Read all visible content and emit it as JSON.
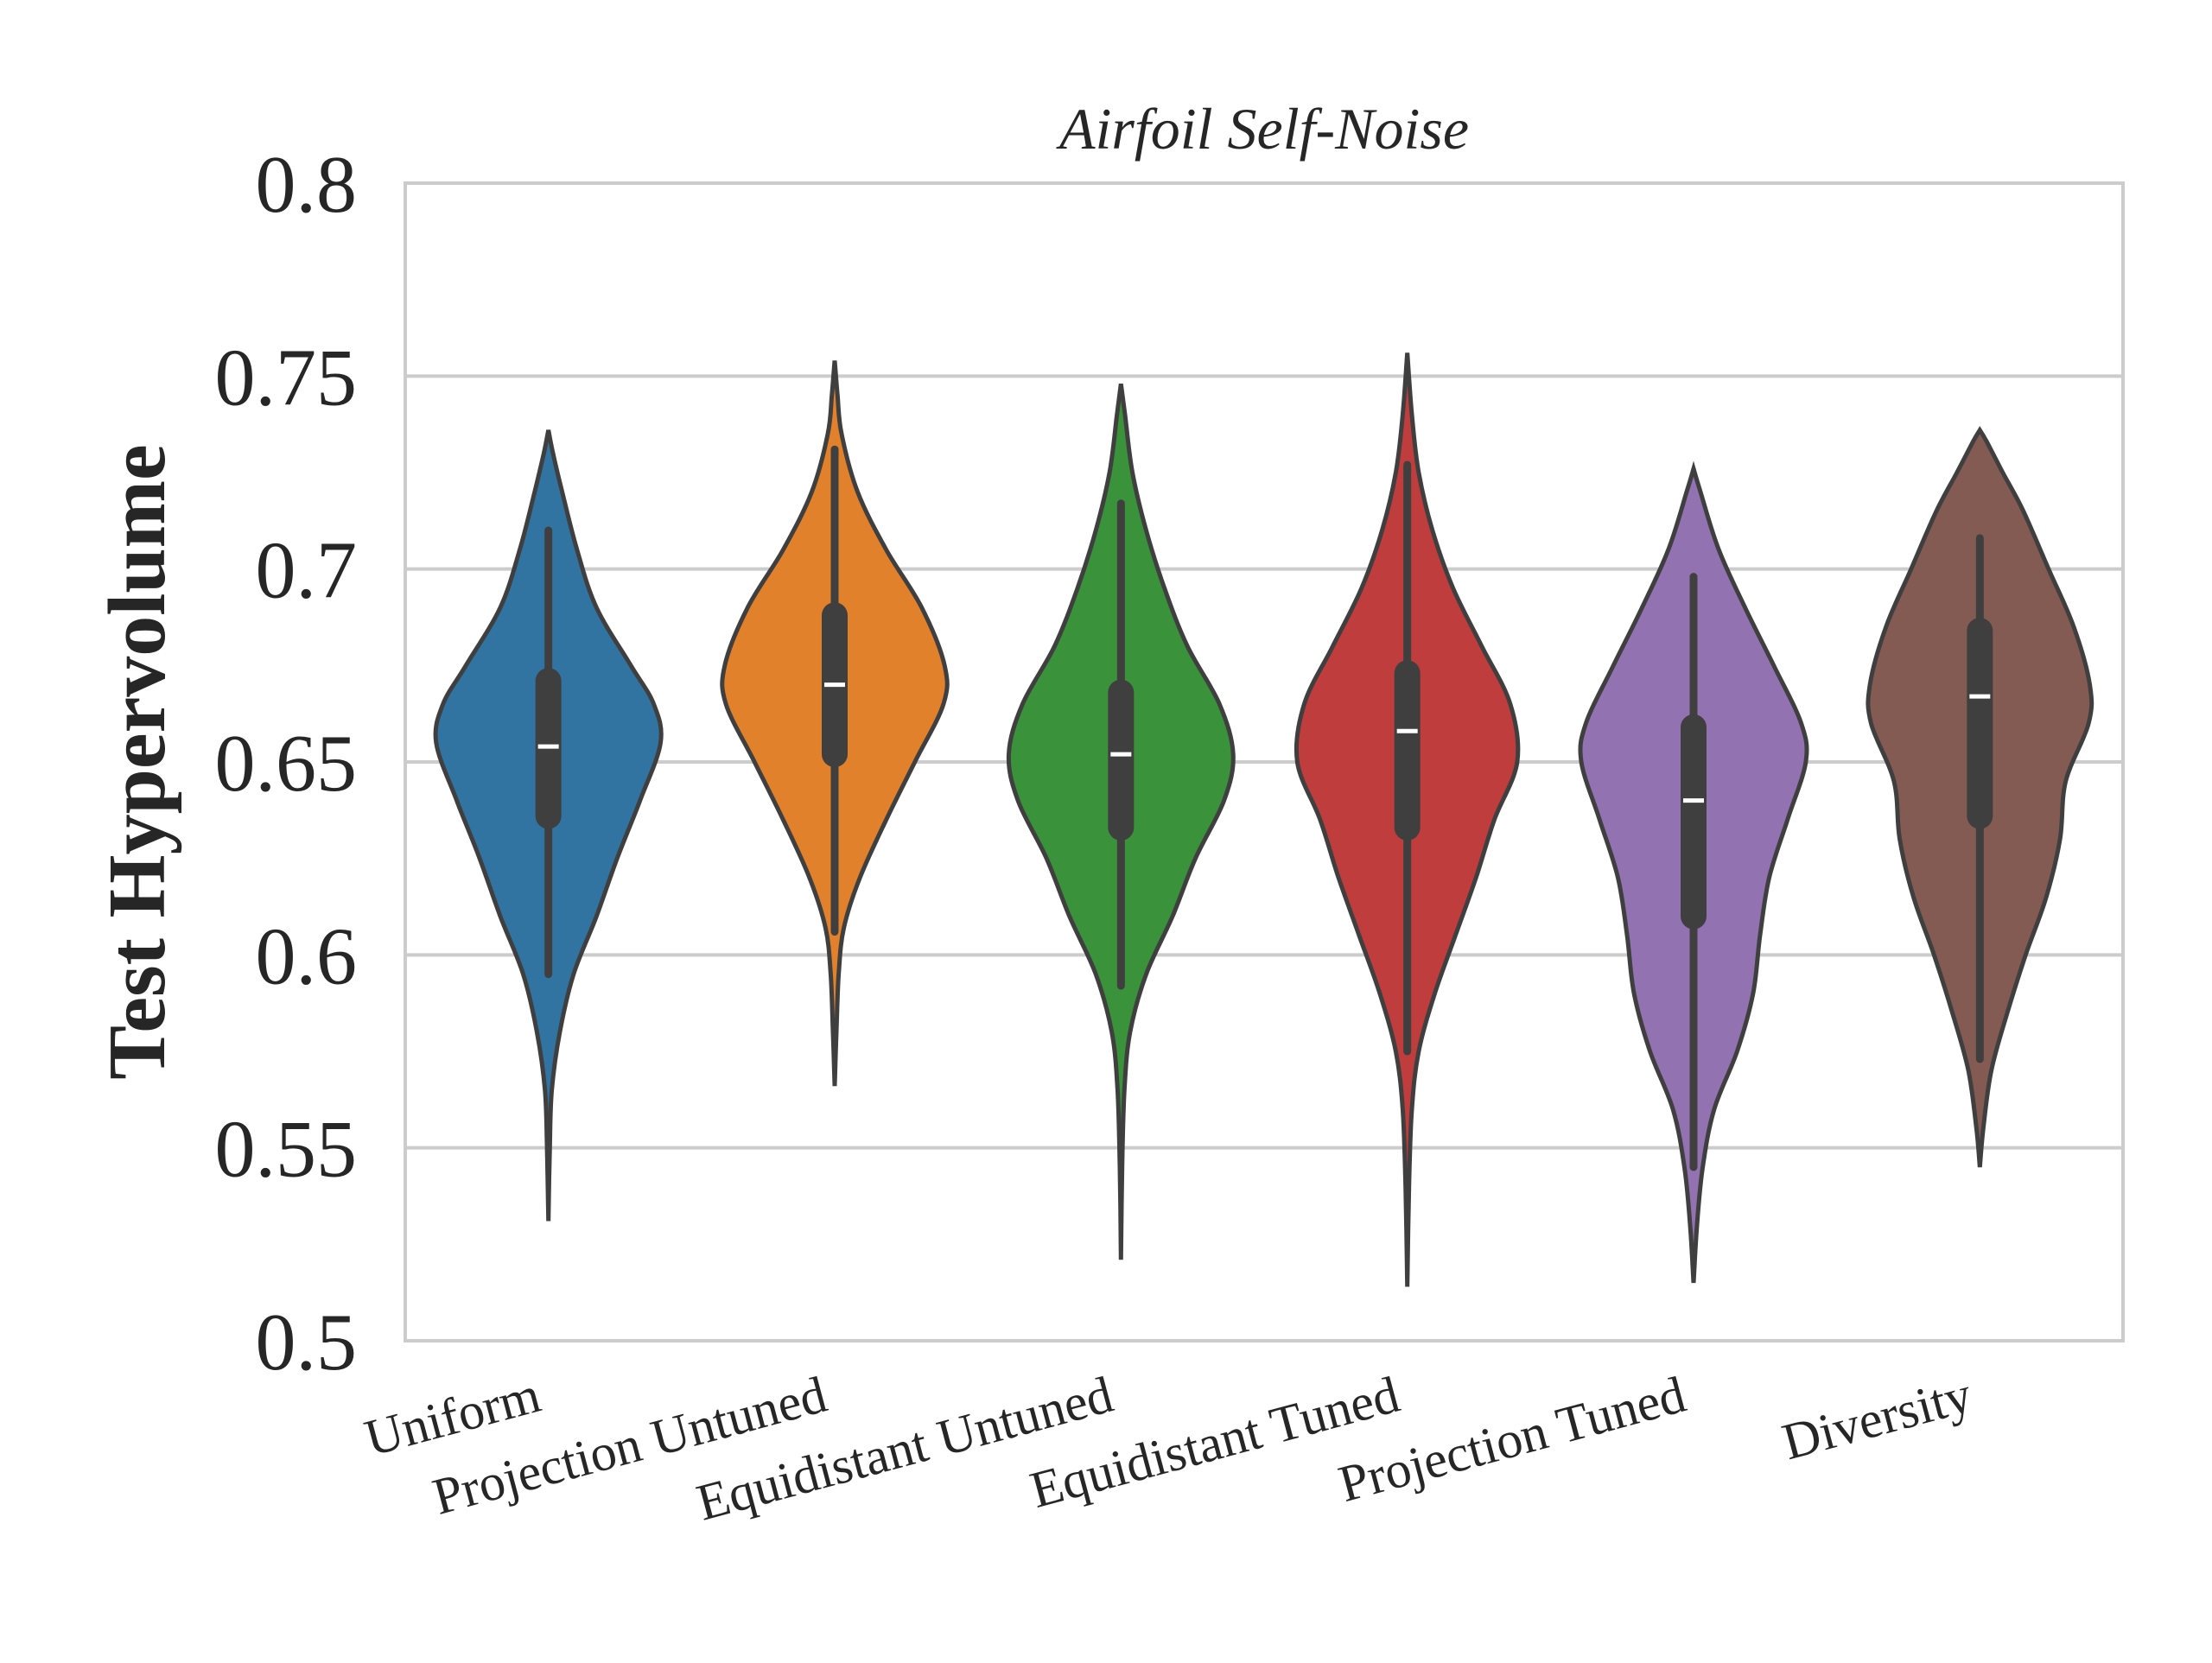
{
  "chart_data": {
    "type": "violin",
    "title": "Airfoil Self-Noise",
    "xlabel": "",
    "ylabel": "Test Hypervolume",
    "ylim": [
      0.5,
      0.8
    ],
    "yticks": [
      "0.5",
      "0.55",
      "0.6",
      "0.65",
      "0.7",
      "0.75",
      "0.8"
    ],
    "grid": "horizontal",
    "categories": [
      "Uniform",
      "Projection Untuned",
      "Equidistant Untuned",
      "Equidistant Tuned",
      "Projection Tuned",
      "Diversity"
    ],
    "colors": [
      "#3274a1",
      "#e1812c",
      "#3a923a",
      "#c03d3e",
      "#9372b2",
      "#845b53"
    ],
    "series": [
      {
        "category": "Uniform",
        "median": 0.654,
        "q1": 0.636,
        "q3": 0.671,
        "whisker_low": 0.595,
        "whisker_high": 0.71,
        "min": 0.531,
        "max": 0.736,
        "density": [
          [
            0.531,
            0
          ],
          [
            0.55,
            0.012
          ],
          [
            0.565,
            0.03
          ],
          [
            0.58,
            0.1
          ],
          [
            0.595,
            0.22
          ],
          [
            0.61,
            0.42
          ],
          [
            0.625,
            0.6
          ],
          [
            0.64,
            0.8
          ],
          [
            0.655,
            0.98
          ],
          [
            0.665,
            0.92
          ],
          [
            0.675,
            0.72
          ],
          [
            0.69,
            0.42
          ],
          [
            0.705,
            0.25
          ],
          [
            0.72,
            0.12
          ],
          [
            0.73,
            0.04
          ],
          [
            0.736,
            0
          ]
        ]
      },
      {
        "category": "Projection Untuned",
        "median": 0.67,
        "q1": 0.652,
        "q3": 0.688,
        "whisker_low": 0.606,
        "whisker_high": 0.731,
        "min": 0.566,
        "max": 0.754,
        "density": [
          [
            0.566,
            0
          ],
          [
            0.58,
            0.015
          ],
          [
            0.595,
            0.035
          ],
          [
            0.607,
            0.08
          ],
          [
            0.62,
            0.22
          ],
          [
            0.635,
            0.45
          ],
          [
            0.65,
            0.7
          ],
          [
            0.665,
            0.95
          ],
          [
            0.675,
            0.96
          ],
          [
            0.69,
            0.76
          ],
          [
            0.705,
            0.45
          ],
          [
            0.72,
            0.2
          ],
          [
            0.735,
            0.06
          ],
          [
            0.745,
            0.025
          ],
          [
            0.754,
            0
          ]
        ]
      },
      {
        "category": "Equidistant Untuned",
        "median": 0.652,
        "q1": 0.633,
        "q3": 0.668,
        "whisker_low": 0.592,
        "whisker_high": 0.717,
        "min": 0.521,
        "max": 0.748,
        "density": [
          [
            0.521,
            0
          ],
          [
            0.545,
            0.01
          ],
          [
            0.565,
            0.03
          ],
          [
            0.58,
            0.08
          ],
          [
            0.595,
            0.22
          ],
          [
            0.61,
            0.45
          ],
          [
            0.625,
            0.65
          ],
          [
            0.64,
            0.9
          ],
          [
            0.652,
            0.98
          ],
          [
            0.665,
            0.86
          ],
          [
            0.68,
            0.58
          ],
          [
            0.695,
            0.38
          ],
          [
            0.71,
            0.22
          ],
          [
            0.725,
            0.1
          ],
          [
            0.74,
            0.035
          ],
          [
            0.748,
            0
          ]
        ]
      },
      {
        "category": "Equidistant Tuned",
        "median": 0.658,
        "q1": 0.633,
        "q3": 0.673,
        "whisker_low": 0.575,
        "whisker_high": 0.727,
        "min": 0.514,
        "max": 0.756,
        "density": [
          [
            0.514,
            0
          ],
          [
            0.54,
            0.015
          ],
          [
            0.56,
            0.04
          ],
          [
            0.575,
            0.1
          ],
          [
            0.59,
            0.24
          ],
          [
            0.605,
            0.42
          ],
          [
            0.62,
            0.6
          ],
          [
            0.635,
            0.76
          ],
          [
            0.65,
            0.96
          ],
          [
            0.665,
            0.9
          ],
          [
            0.68,
            0.65
          ],
          [
            0.695,
            0.4
          ],
          [
            0.71,
            0.22
          ],
          [
            0.725,
            0.1
          ],
          [
            0.74,
            0.04
          ],
          [
            0.756,
            0
          ]
        ]
      },
      {
        "category": "Projection Tuned",
        "median": 0.64,
        "q1": 0.61,
        "q3": 0.659,
        "whisker_low": 0.545,
        "whisker_high": 0.698,
        "min": 0.515,
        "max": 0.726,
        "density": [
          [
            0.515,
            0
          ],
          [
            0.53,
            0.03
          ],
          [
            0.545,
            0.08
          ],
          [
            0.56,
            0.18
          ],
          [
            0.575,
            0.38
          ],
          [
            0.59,
            0.52
          ],
          [
            0.605,
            0.58
          ],
          [
            0.62,
            0.66
          ],
          [
            0.635,
            0.82
          ],
          [
            0.65,
            0.98
          ],
          [
            0.66,
            0.94
          ],
          [
            0.675,
            0.7
          ],
          [
            0.69,
            0.45
          ],
          [
            0.705,
            0.22
          ],
          [
            0.72,
            0.06
          ],
          [
            0.726,
            0
          ]
        ]
      },
      {
        "category": "Diversity",
        "median": 0.667,
        "q1": 0.636,
        "q3": 0.684,
        "whisker_low": 0.573,
        "whisker_high": 0.708,
        "min": 0.545,
        "max": 0.736,
        "density": [
          [
            0.545,
            0
          ],
          [
            0.555,
            0.03
          ],
          [
            0.57,
            0.1
          ],
          [
            0.585,
            0.24
          ],
          [
            0.6,
            0.4
          ],
          [
            0.615,
            0.58
          ],
          [
            0.63,
            0.7
          ],
          [
            0.645,
            0.75
          ],
          [
            0.66,
            0.95
          ],
          [
            0.67,
            0.96
          ],
          [
            0.685,
            0.82
          ],
          [
            0.7,
            0.6
          ],
          [
            0.715,
            0.38
          ],
          [
            0.725,
            0.2
          ],
          [
            0.733,
            0.06
          ],
          [
            0.736,
            0
          ]
        ]
      }
    ]
  }
}
